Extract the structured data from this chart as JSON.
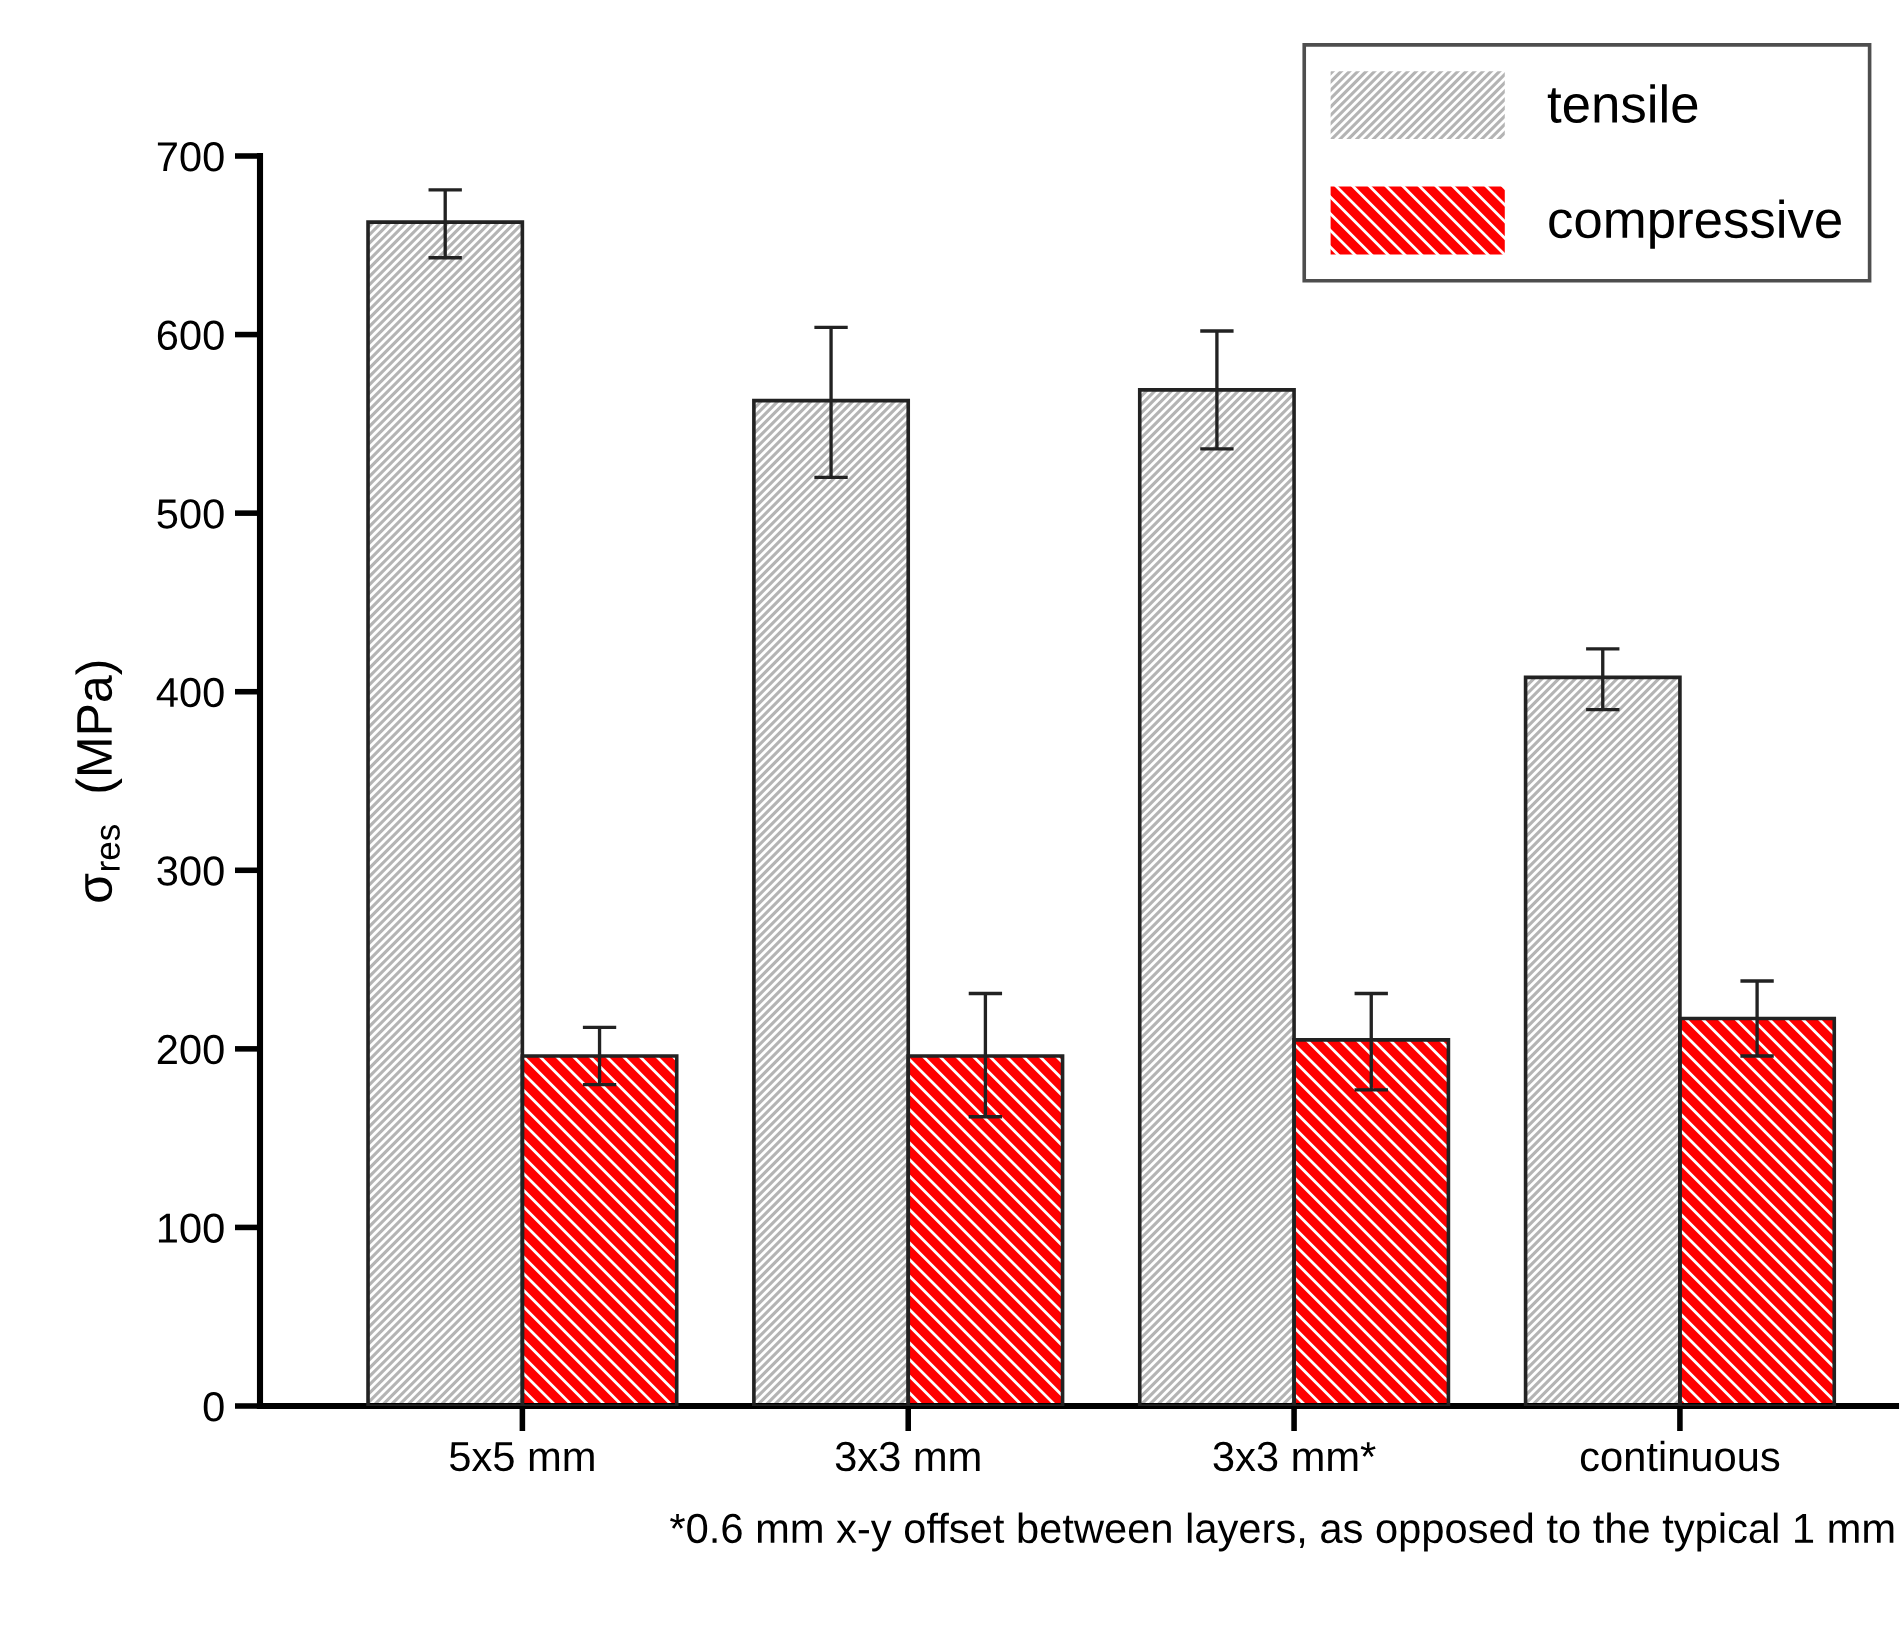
{
  "chart_data": {
    "type": "bar",
    "ylabel": "σ$_{res}$  (MPa)",
    "categories": [
      "5x5 mm",
      "3x3 mm",
      "3x3 mm*",
      "continuous"
    ],
    "series": [
      {
        "name": "tensile",
        "color": "#b4b4b4",
        "values": [
          663,
          563,
          569,
          408
        ],
        "errors": [
          [
            643,
            681
          ],
          [
            520,
            604
          ],
          [
            536,
            602
          ],
          [
            390,
            424
          ]
        ]
      },
      {
        "name": "compressive",
        "color": "#ff0000",
        "values": [
          196,
          196,
          205,
          217
        ],
        "errors": [
          [
            180,
            212
          ],
          [
            162,
            231
          ],
          [
            177,
            231
          ],
          [
            196,
            238
          ]
        ]
      }
    ],
    "ylim": [
      0,
      700
    ],
    "yticks": [
      0,
      100,
      200,
      300,
      400,
      500,
      600,
      700
    ],
    "grid": false,
    "legend": "top right",
    "annotations": [
      "*0.6 mm x-y offset between layers, as opposed to the typical 1 mm"
    ]
  }
}
